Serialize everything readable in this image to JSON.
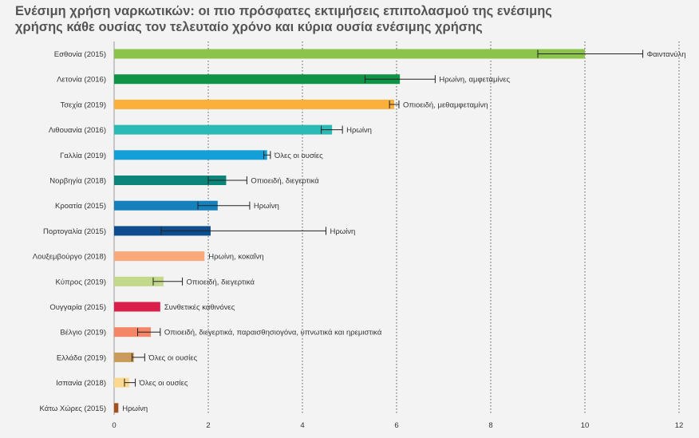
{
  "title_lines": [
    "Ενέσιμη χρήση ναρκωτικών: οι πιο πρόσφατες εκτιμήσεις επιπολασμού της ενέσιμης",
    "χρήσης κάθε ουσίας τον τελευταίο χρόνο και κύρια ουσία ενέσιμης χρήσης"
  ],
  "chart_data": {
    "type": "bar",
    "orientation": "horizontal",
    "grid": true,
    "xlim": [
      0,
      12
    ],
    "x_ticks": [
      "0",
      "2",
      "4",
      "6",
      "8",
      "10",
      "12"
    ],
    "xlabel": "",
    "ylabel": "",
    "categories": [
      "Εσθονία (2015)",
      "Λετονία (2016)",
      "Τσεχία (2019)",
      "Λιθουανία (2016)",
      "Γαλλία (2019)",
      "Νορβηγία (2018)",
      "Κροατία (2015)",
      "Πορτογαλία (2015)",
      "Λουξεμβούργο (2018)",
      "Κύπρος (2019)",
      "Ουγγαρία (2015)",
      "Βέλγιο (2019)",
      "Ελλάδα (2019)",
      "Ισπανία (2018)",
      "Κάτω Χώρες (2015)"
    ],
    "values": [
      10.0,
      6.07,
      5.95,
      4.63,
      3.25,
      2.38,
      2.2,
      2.05,
      1.92,
      1.05,
      0.98,
      0.78,
      0.42,
      0.32,
      0.09
    ],
    "error_low": [
      9.0,
      5.33,
      5.85,
      4.4,
      3.18,
      2.0,
      1.78,
      1.0,
      null,
      0.83,
      null,
      0.5,
      0.38,
      0.22,
      null
    ],
    "error_high": [
      11.23,
      6.82,
      6.05,
      4.85,
      3.32,
      2.82,
      2.88,
      4.5,
      null,
      1.45,
      null,
      0.98,
      0.65,
      0.45,
      null
    ],
    "substances": [
      "Φαιντανύλη",
      "Ηρωίνη, αμφεταμίνες",
      "Οπιοειδή, μεθαμφεταμίνη",
      "Ηρωίνη",
      "Όλες οι ουσίες",
      "Οπιοειδή, διεγερτικά",
      "Ηρωίνη",
      "Ηρωίνη",
      "Ηρωίνη, κοκαΐνη",
      "Οπιοειδή, διεγερτικά",
      "Συνθετικές καθινόνες",
      "Οπιοειδή, διεγερτικά, παραισθησιογόνα, υπνωτικά και ηρεμιστικά",
      "Όλες οι ουσίες",
      "Όλες οι ουσίες",
      "Ηρωίνη"
    ],
    "colors": [
      "#8cc34b",
      "#0f9447",
      "#fbb03b",
      "#2bbab5",
      "#159fd9",
      "#0d8479",
      "#1680bd",
      "#0e4e8f",
      "#f9a97a",
      "#c3d88b",
      "#da1f4b",
      "#f48566",
      "#c99a5c",
      "#fbd88e",
      "#a5501f"
    ]
  }
}
